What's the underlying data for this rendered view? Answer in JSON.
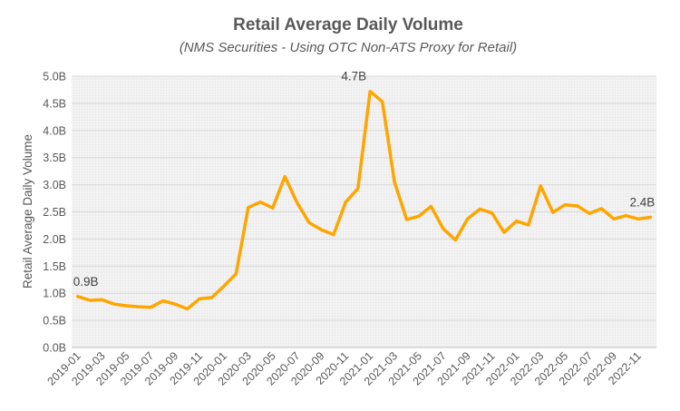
{
  "chart_data": {
    "type": "line",
    "title": "Retail Average Daily Volume",
    "subtitle": "(NMS Securities - Using OTC Non-ATS Proxy for Retail)",
    "ylabel": "Retail Average Daily Volume",
    "xlabel": "",
    "ylim": [
      0,
      5
    ],
    "yticks": [
      0,
      0.5,
      1,
      1.5,
      2,
      2.5,
      3,
      3.5,
      4,
      4.5,
      5
    ],
    "ytick_labels": [
      "0.0B",
      "0.5B",
      "1.0B",
      "1.5B",
      "2.0B",
      "2.5B",
      "3.0B",
      "3.5B",
      "4.0B",
      "4.5B",
      "5.0B"
    ],
    "xtick_labels": [
      "2019-01",
      "2019-03",
      "2019-05",
      "2019-07",
      "2019-09",
      "2019-11",
      "2020-01",
      "2020-03",
      "2020-05",
      "2020-07",
      "2020-09",
      "2020-11",
      "2021-01",
      "2021-03",
      "2021-05",
      "2021-07",
      "2021-09",
      "2021-11",
      "2022-01",
      "2022-03",
      "2022-05",
      "2022-07",
      "2022-09",
      "2022-11"
    ],
    "x": [
      "2019-01",
      "2019-02",
      "2019-03",
      "2019-04",
      "2019-05",
      "2019-06",
      "2019-07",
      "2019-08",
      "2019-09",
      "2019-10",
      "2019-11",
      "2019-12",
      "2020-01",
      "2020-02",
      "2020-03",
      "2020-04",
      "2020-05",
      "2020-06",
      "2020-07",
      "2020-08",
      "2020-09",
      "2020-10",
      "2020-11",
      "2020-12",
      "2021-01",
      "2021-02",
      "2021-03",
      "2021-04",
      "2021-05",
      "2021-06",
      "2021-07",
      "2021-08",
      "2021-09",
      "2021-10",
      "2021-11",
      "2021-12",
      "2022-01",
      "2022-02",
      "2022-03",
      "2022-04",
      "2022-05",
      "2022-06",
      "2022-07",
      "2022-08",
      "2022-09",
      "2022-10",
      "2022-11",
      "2022-12"
    ],
    "series": [
      {
        "name": "Retail Average Daily Volume",
        "color": "#FFA500",
        "values": [
          0.94,
          0.87,
          0.88,
          0.8,
          0.77,
          0.75,
          0.74,
          0.86,
          0.8,
          0.71,
          0.9,
          0.92,
          1.13,
          1.36,
          2.58,
          2.68,
          2.57,
          3.15,
          2.67,
          2.3,
          2.17,
          2.08,
          2.68,
          2.93,
          4.72,
          4.53,
          3.05,
          2.36,
          2.42,
          2.6,
          2.19,
          1.98,
          2.37,
          2.55,
          2.48,
          2.12,
          2.33,
          2.26,
          2.98,
          2.49,
          2.63,
          2.61,
          2.47,
          2.56,
          2.37,
          2.43,
          2.37,
          2.4
        ]
      }
    ],
    "annotations": [
      {
        "index": 0,
        "text": "0.9B"
      },
      {
        "index": 24,
        "text": "4.7B"
      },
      {
        "index": 47,
        "text": "2.4B"
      }
    ],
    "grid": true,
    "legend": "none",
    "colors": {
      "line": "#FFA500",
      "plot_background": "#F2F2F2",
      "gridline": "#D9D9D9",
      "text": "#595959"
    }
  }
}
